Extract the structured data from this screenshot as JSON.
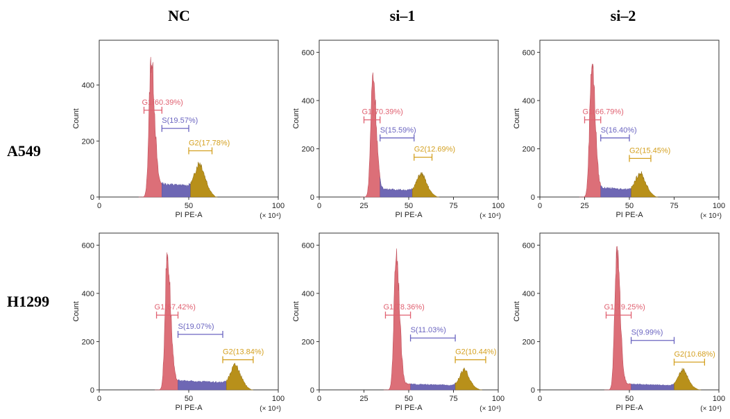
{
  "figure": {
    "column_titles": [
      "NC",
      "si–1",
      "si–2"
    ],
    "row_titles": [
      "A549",
      "H1299"
    ]
  },
  "colors": {
    "g1_fill": "#dc6f78",
    "g1_line": "#c0505c",
    "s_fill": "#6e67b4",
    "g2_fill": "#b8901a",
    "g1_label": "#e06070",
    "s_label": "#6a64c0",
    "g2_label": "#d4a020"
  },
  "chart_data": [
    {
      "type": "area",
      "panel": "A549-NC",
      "xlabel": "PI PE-A",
      "ylabel": "Count",
      "x_unit": "(× 10⁴)",
      "xlim": [
        0,
        100
      ],
      "ylim": [
        0,
        560
      ],
      "xticks": [
        0,
        50,
        100
      ],
      "yticks": [
        0,
        200,
        400
      ],
      "g1_peak": {
        "x": 29,
        "height": 490
      },
      "g2_peak": {
        "x": 56,
        "height": 85
      },
      "s_level": 50,
      "gates": [
        {
          "name": "G1",
          "label": "G1(60.39%)",
          "x": [
            25,
            35
          ],
          "y": 310
        },
        {
          "name": "S",
          "label": "S(19.57%)",
          "x": [
            35,
            50
          ],
          "y": 245
        },
        {
          "name": "G2",
          "label": "G2(17.78%)",
          "x": [
            50,
            63
          ],
          "y": 165
        }
      ]
    },
    {
      "type": "area",
      "panel": "A549-si1",
      "xlabel": "PI PE-A",
      "ylabel": "Count",
      "x_unit": "(× 10⁴)",
      "xlim": [
        0,
        100
      ],
      "ylim": [
        0,
        650
      ],
      "xticks": [
        0,
        25,
        50,
        75,
        100
      ],
      "yticks": [
        0,
        200,
        400,
        600
      ],
      "g1_peak": {
        "x": 30,
        "height": 505
      },
      "g2_peak": {
        "x": 57,
        "height": 70
      },
      "s_level": 35,
      "gates": [
        {
          "name": "G1",
          "label": "G1(70.39%)",
          "x": [
            25,
            34
          ],
          "y": 320
        },
        {
          "name": "S",
          "label": "S(15.59%)",
          "x": [
            34,
            53
          ],
          "y": 245
        },
        {
          "name": "G2",
          "label": "G2(12.69%)",
          "x": [
            53,
            63
          ],
          "y": 165
        }
      ]
    },
    {
      "type": "area",
      "panel": "A549-si2",
      "xlabel": "PI PE-A",
      "ylabel": "Count",
      "x_unit": "(× 10⁴)",
      "xlim": [
        0,
        100
      ],
      "ylim": [
        0,
        650
      ],
      "xticks": [
        0,
        25,
        50,
        75,
        100
      ],
      "yticks": [
        0,
        200,
        400,
        600
      ],
      "g1_peak": {
        "x": 29,
        "height": 560
      },
      "g2_peak": {
        "x": 56,
        "height": 70
      },
      "s_level": 40,
      "gates": [
        {
          "name": "G1",
          "label": "G1(66.79%)",
          "x": [
            25,
            34
          ],
          "y": 320
        },
        {
          "name": "S",
          "label": "S(16.40%)",
          "x": [
            34,
            50
          ],
          "y": 245
        },
        {
          "name": "G2",
          "label": "G2(15.45%)",
          "x": [
            50,
            62
          ],
          "y": 160
        }
      ]
    },
    {
      "type": "area",
      "panel": "H1299-NC",
      "xlabel": "PI PE-A",
      "ylabel": "Count",
      "x_unit": "(× 10⁴)",
      "xlim": [
        0,
        100
      ],
      "ylim": [
        0,
        650
      ],
      "xticks": [
        0,
        50,
        100
      ],
      "yticks": [
        0,
        200,
        400,
        600
      ],
      "g1_peak": {
        "x": 38,
        "height": 560
      },
      "g2_peak": {
        "x": 76,
        "height": 75
      },
      "s_level": 40,
      "gates": [
        {
          "name": "G1",
          "label": "G1(67.42%)",
          "x": [
            32,
            44
          ],
          "y": 310
        },
        {
          "name": "S",
          "label": "S(19.07%)",
          "x": [
            44,
            69
          ],
          "y": 230
        },
        {
          "name": "G2",
          "label": "G2(13.84%)",
          "x": [
            69,
            86
          ],
          "y": 125
        }
      ]
    },
    {
      "type": "area",
      "panel": "H1299-si1",
      "xlabel": "PI PE-A",
      "ylabel": "Count",
      "x_unit": "(× 10⁴)",
      "xlim": [
        0,
        100
      ],
      "ylim": [
        0,
        650
      ],
      "xticks": [
        0,
        25,
        50,
        75,
        100
      ],
      "yticks": [
        0,
        200,
        400,
        600
      ],
      "g1_peak": {
        "x": 43,
        "height": 575
      },
      "g2_peak": {
        "x": 81,
        "height": 65
      },
      "s_level": 25,
      "gates": [
        {
          "name": "G1",
          "label": "G1(78.36%)",
          "x": [
            37,
            51
          ],
          "y": 310
        },
        {
          "name": "S",
          "label": "S(11.03%)",
          "x": [
            51,
            76
          ],
          "y": 215
        },
        {
          "name": "G2",
          "label": "G2(10.44%)",
          "x": [
            76,
            93
          ],
          "y": 125
        }
      ]
    },
    {
      "type": "area",
      "panel": "H1299-si2",
      "xlabel": "PI PE-A",
      "ylabel": "Count",
      "x_unit": "(× 10⁴)",
      "xlim": [
        0,
        100
      ],
      "ylim": [
        0,
        650
      ],
      "xticks": [
        0,
        50,
        100
      ],
      "yticks": [
        0,
        200,
        400,
        600
      ],
      "g1_peak": {
        "x": 43,
        "height": 575
      },
      "g2_peak": {
        "x": 80,
        "height": 65
      },
      "s_level": 25,
      "gates": [
        {
          "name": "G1",
          "label": "G1(79.25%)",
          "x": [
            37,
            51
          ],
          "y": 310
        },
        {
          "name": "S",
          "label": "S(9.99%)",
          "x": [
            51,
            75
          ],
          "y": 205
        },
        {
          "name": "G2",
          "label": "G2(10.68%)",
          "x": [
            75,
            92
          ],
          "y": 115
        }
      ]
    }
  ]
}
